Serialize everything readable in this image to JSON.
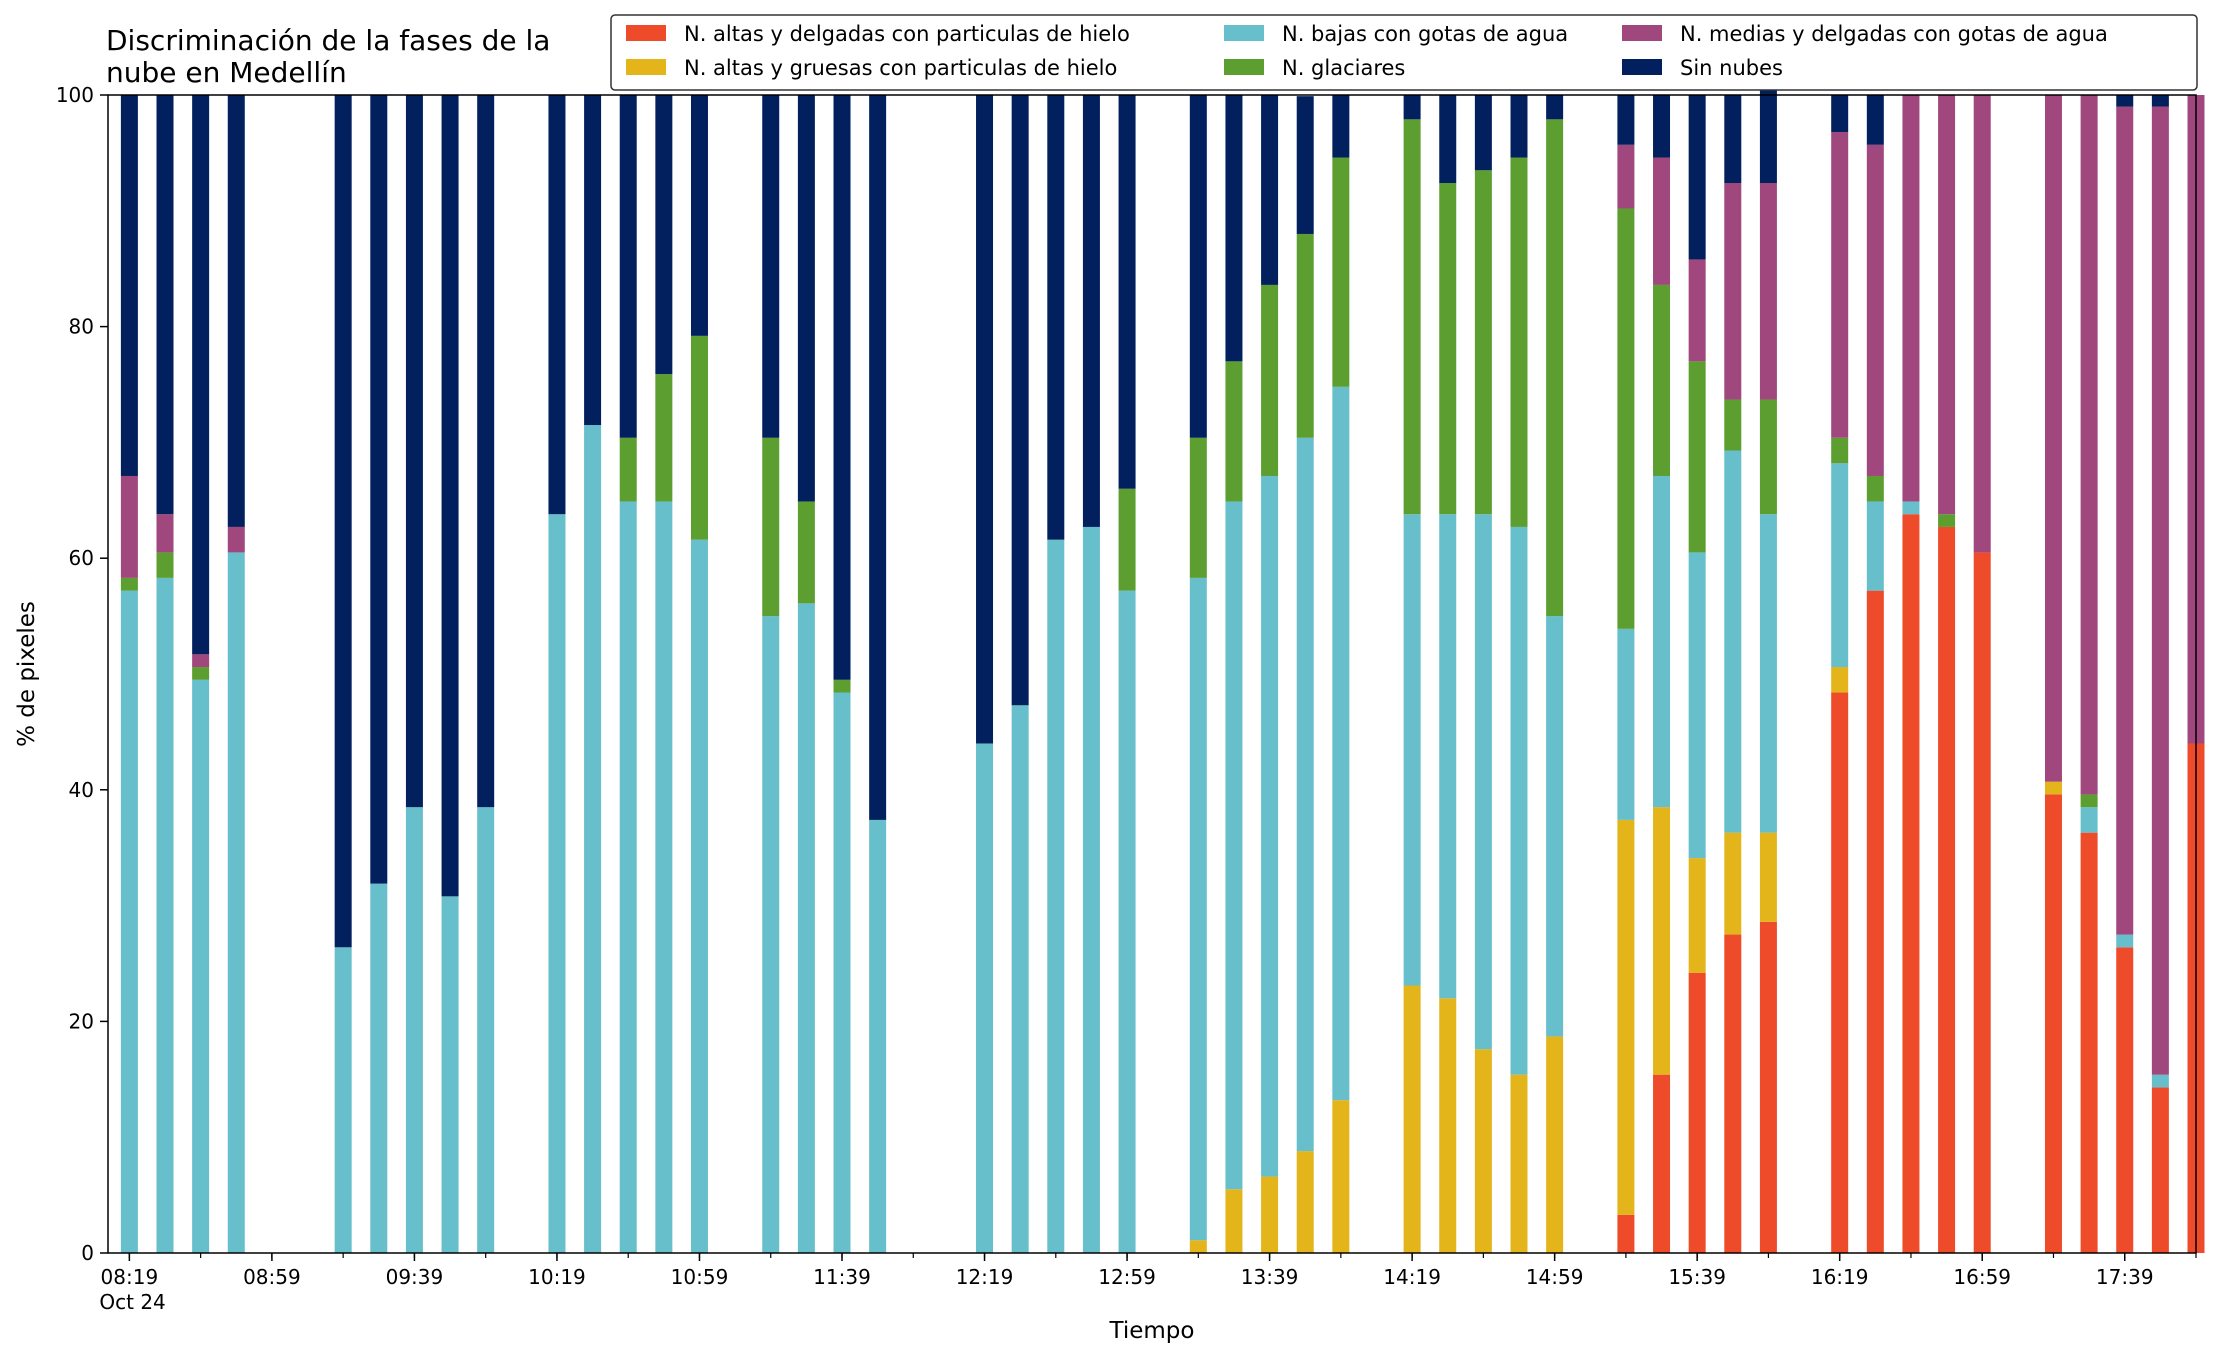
{
  "chart_data": {
    "type": "bar",
    "stacked": true,
    "title": "Discriminación de la fases de la\nnube en Medellín",
    "xlabel": "Tiempo",
    "ylabel": "% de pixeles",
    "ylim": [
      0,
      100
    ],
    "yticks": [
      0,
      20,
      40,
      60,
      80,
      100
    ],
    "xlim": [
      "08:13",
      "17:59"
    ],
    "xtick_labels": [
      "08:19",
      "08:59",
      "09:39",
      "10:19",
      "10:59",
      "11:39",
      "12:19",
      "12:59",
      "13:39",
      "14:19",
      "14:59",
      "15:39",
      "16:19",
      "16:59",
      "17:39"
    ],
    "xtick_date_label": "Oct 24",
    "grid": false,
    "legend_position": "top-right",
    "categories": [
      "08:19",
      "08:29",
      "08:39",
      "08:49",
      "09:19",
      "09:29",
      "09:39",
      "09:49",
      "09:59",
      "10:19",
      "10:29",
      "10:39",
      "10:49",
      "10:59",
      "11:19",
      "11:29",
      "11:39",
      "11:49",
      "12:19",
      "12:29",
      "12:39",
      "12:49",
      "12:59",
      "13:19",
      "13:29",
      "13:39",
      "13:49",
      "13:59",
      "14:19",
      "14:29",
      "14:39",
      "14:49",
      "14:59",
      "15:19",
      "15:29",
      "15:39",
      "15:49",
      "15:59",
      "16:19",
      "16:29",
      "16:39",
      "16:49",
      "16:59",
      "17:19",
      "17:29",
      "17:39",
      "17:49",
      "17:59"
    ],
    "series": [
      {
        "name": "N. altas y delgadas con particulas de hielo",
        "color": "#ee4b2b",
        "values": [
          0,
          0,
          0,
          0,
          0,
          0,
          0,
          0,
          0,
          0,
          0,
          0,
          0,
          0,
          0,
          0,
          0,
          0,
          0,
          0,
          0,
          0,
          0,
          0,
          0,
          0,
          0,
          0,
          0,
          0,
          0,
          0,
          0,
          3.3,
          15.4,
          24.2,
          27.5,
          28.6,
          48.4,
          57.2,
          63.8,
          62.7,
          60.5,
          39.6,
          36.3,
          26.4,
          14.3,
          44.0
        ]
      },
      {
        "name": "N. altas y gruesas con particulas de hielo",
        "color": "#e3b51a",
        "values": [
          0,
          0,
          0,
          0,
          0,
          0,
          0,
          0,
          0,
          0,
          0,
          0,
          0,
          0,
          0,
          0,
          0,
          0,
          0,
          0,
          0,
          0,
          0,
          1.1,
          5.5,
          6.6,
          8.8,
          13.2,
          23.1,
          22.0,
          17.6,
          15.4,
          18.7,
          34.1,
          23.1,
          9.9,
          8.8,
          7.7,
          2.2,
          0,
          0,
          0,
          0,
          1.1,
          0,
          0,
          0,
          0
        ]
      },
      {
        "name": "N. bajas con gotas de agua",
        "color": "#67bfcb",
        "values": [
          57.2,
          58.3,
          49.5,
          60.5,
          26.4,
          31.9,
          38.5,
          30.8,
          38.5,
          63.8,
          71.5,
          64.9,
          64.9,
          61.6,
          55.0,
          56.1,
          48.4,
          37.4,
          44.0,
          47.3,
          61.6,
          62.7,
          57.2,
          57.2,
          59.4,
          60.5,
          61.6,
          61.6,
          40.7,
          41.8,
          46.2,
          47.3,
          36.3,
          16.5,
          28.6,
          26.4,
          33.0,
          27.5,
          17.6,
          7.7,
          1.1,
          0,
          0,
          0,
          2.2,
          1.1,
          1.1,
          0
        ]
      },
      {
        "name": "N. glaciares",
        "color": "#5c9e30",
        "values": [
          1.1,
          2.2,
          1.1,
          0,
          0,
          0,
          0,
          0,
          0,
          0,
          0,
          5.5,
          11.0,
          17.6,
          15.4,
          8.8,
          1.1,
          0,
          0,
          0,
          0,
          0,
          8.8,
          12.1,
          12.1,
          16.5,
          17.6,
          19.8,
          34.1,
          28.6,
          29.7,
          31.9,
          42.9,
          36.3,
          16.5,
          16.5,
          4.4,
          9.9,
          2.2,
          2.2,
          0,
          1.1,
          0,
          0,
          1.1,
          0,
          0,
          0
        ]
      },
      {
        "name": "N. medias y delgadas con gotas de agua",
        "color": "#a0477d",
        "values": [
          8.8,
          3.3,
          1.1,
          2.2,
          0,
          0,
          0,
          0,
          0,
          0,
          0,
          0,
          0,
          0,
          0,
          0,
          0,
          0,
          0,
          0,
          0,
          0,
          0,
          0,
          0,
          0,
          0,
          0,
          0,
          0,
          0,
          0,
          0,
          5.5,
          11.0,
          8.8,
          18.7,
          18.7,
          26.4,
          28.6,
          35.1,
          36.2,
          39.5,
          59.3,
          60.4,
          71.5,
          83.6,
          56.0
        ]
      },
      {
        "name": "Sin nubes",
        "color": "#03205e",
        "values": [
          32.9,
          36.2,
          48.3,
          37.3,
          73.6,
          68.1,
          61.5,
          69.2,
          61.5,
          36.2,
          28.5,
          29.6,
          24.1,
          20.8,
          29.6,
          35.1,
          50.5,
          62.6,
          56.0,
          52.7,
          38.4,
          37.3,
          34.0,
          29.6,
          23.0,
          16.4,
          11.9,
          5.4,
          2.1,
          7.6,
          6.5,
          5.4,
          2.1,
          4.3,
          5.4,
          14.2,
          7.6,
          8.8,
          3.2,
          4.3,
          0,
          0,
          0,
          0,
          0,
          1.0,
          1.0,
          0
        ]
      }
    ]
  }
}
